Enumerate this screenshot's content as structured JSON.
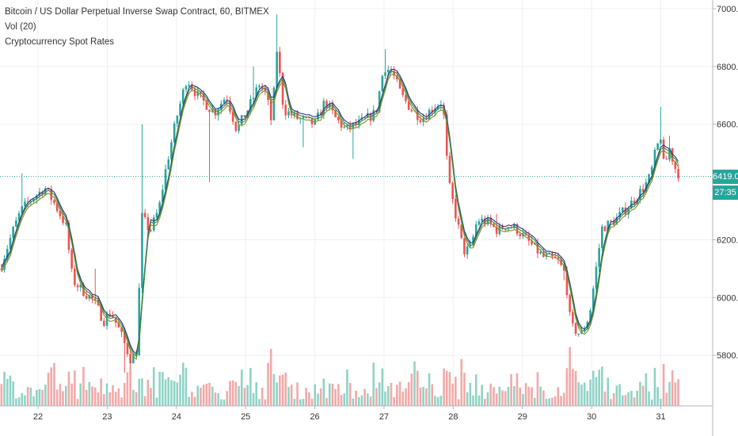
{
  "legend": {
    "symbol_title": "Bitcoin / US Dollar Perpetual Inverse Swap Contract, 60, BITMEX",
    "volume_indicator": "Vol (20)",
    "overlay_indicator": "Cryptocurrency Spot Rates"
  },
  "price_tag": {
    "last_price": "6419.0",
    "countdown": "27:35",
    "color": "#26a69a"
  },
  "colors": {
    "up": "#26a69a",
    "down": "#ef5350",
    "up_volume": "#8fd3c5",
    "down_volume": "#f2a9a8",
    "grid": "#eef0f3",
    "axis_text": "#333333",
    "spot_green": "#2e8b3e",
    "spot_blue": "#2b2f8f",
    "spot_olive": "#8d8a2a"
  },
  "chart_data": {
    "type": "candlestick",
    "title": "Bitcoin / US Dollar Perpetual Inverse Swap Contract, 60, BITMEX",
    "xlabel": "",
    "ylabel": "",
    "x_ticks": [
      "22",
      "23",
      "24",
      "25",
      "26",
      "27",
      "28",
      "29",
      "30",
      "31"
    ],
    "x_range_days": [
      21.45,
      31.75
    ],
    "y_ticks": [
      "7000.0",
      "6800.0",
      "6600.0",
      "6200.0",
      "6000.0",
      "5800.0"
    ],
    "ylim": [
      5625,
      7030
    ],
    "last_price": 6419,
    "grid": true,
    "close_path": [
      [
        21.45,
        6100
      ],
      [
        21.62,
        6220
      ],
      [
        21.75,
        6300
      ],
      [
        21.9,
        6340
      ],
      [
        22.1,
        6380
      ],
      [
        22.25,
        6320
      ],
      [
        22.4,
        6250
      ],
      [
        22.5,
        6060
      ],
      [
        22.62,
        6030
      ],
      [
        22.8,
        5990
      ],
      [
        22.95,
        5920
      ],
      [
        23.05,
        5950
      ],
      [
        23.15,
        5900
      ],
      [
        23.35,
        5780
      ],
      [
        23.43,
        5820
      ],
      [
        23.5,
        6280
      ],
      [
        23.62,
        6230
      ],
      [
        23.75,
        6310
      ],
      [
        23.85,
        6450
      ],
      [
        24.0,
        6620
      ],
      [
        24.15,
        6760
      ],
      [
        24.3,
        6700
      ],
      [
        24.55,
        6640
      ],
      [
        24.72,
        6700
      ],
      [
        24.87,
        6580
      ],
      [
        25.05,
        6660
      ],
      [
        25.2,
        6740
      ],
      [
        25.3,
        6700
      ],
      [
        25.38,
        6600
      ],
      [
        25.45,
        6860
      ],
      [
        25.55,
        6650
      ],
      [
        25.75,
        6620
      ],
      [
        26.0,
        6600
      ],
      [
        26.15,
        6680
      ],
      [
        26.3,
        6620
      ],
      [
        26.45,
        6580
      ],
      [
        26.7,
        6610
      ],
      [
        26.88,
        6640
      ],
      [
        27.0,
        6800
      ],
      [
        27.12,
        6780
      ],
      [
        27.25,
        6700
      ],
      [
        27.4,
        6650
      ],
      [
        27.55,
        6620
      ],
      [
        27.72,
        6660
      ],
      [
        27.85,
        6680
      ],
      [
        27.93,
        6400
      ],
      [
        28.05,
        6270
      ],
      [
        28.15,
        6160
      ],
      [
        28.25,
        6170
      ],
      [
        28.35,
        6270
      ],
      [
        28.5,
        6260
      ],
      [
        28.65,
        6230
      ],
      [
        28.75,
        6250
      ],
      [
        28.9,
        6240
      ],
      [
        29.1,
        6190
      ],
      [
        29.3,
        6140
      ],
      [
        29.5,
        6130
      ],
      [
        29.62,
        6080
      ],
      [
        29.7,
        5900
      ],
      [
        29.85,
        5870
      ],
      [
        29.97,
        5940
      ],
      [
        30.15,
        6240
      ],
      [
        30.35,
        6270
      ],
      [
        30.55,
        6320
      ],
      [
        30.75,
        6380
      ],
      [
        30.85,
        6420
      ],
      [
        30.92,
        6500
      ],
      [
        31.0,
        6560
      ],
      [
        31.05,
        6440
      ],
      [
        31.12,
        6520
      ],
      [
        31.22,
        6440
      ],
      [
        31.3,
        6419
      ]
    ],
    "spike_highs": [
      [
        21.75,
        6430
      ],
      [
        22.45,
        6200
      ],
      [
        22.82,
        6100
      ],
      [
        23.25,
        5740
      ],
      [
        23.52,
        6600
      ],
      [
        24.48,
        6400
      ],
      [
        25.12,
        6800
      ],
      [
        25.45,
        6980
      ],
      [
        25.85,
        6520
      ],
      [
        26.55,
        6480
      ],
      [
        27.02,
        6860
      ],
      [
        28.62,
        6290
      ],
      [
        29.6,
        6060
      ],
      [
        30.98,
        6660
      ],
      [
        31.12,
        6560
      ]
    ],
    "volume_scale": [
      0,
      100
    ]
  }
}
